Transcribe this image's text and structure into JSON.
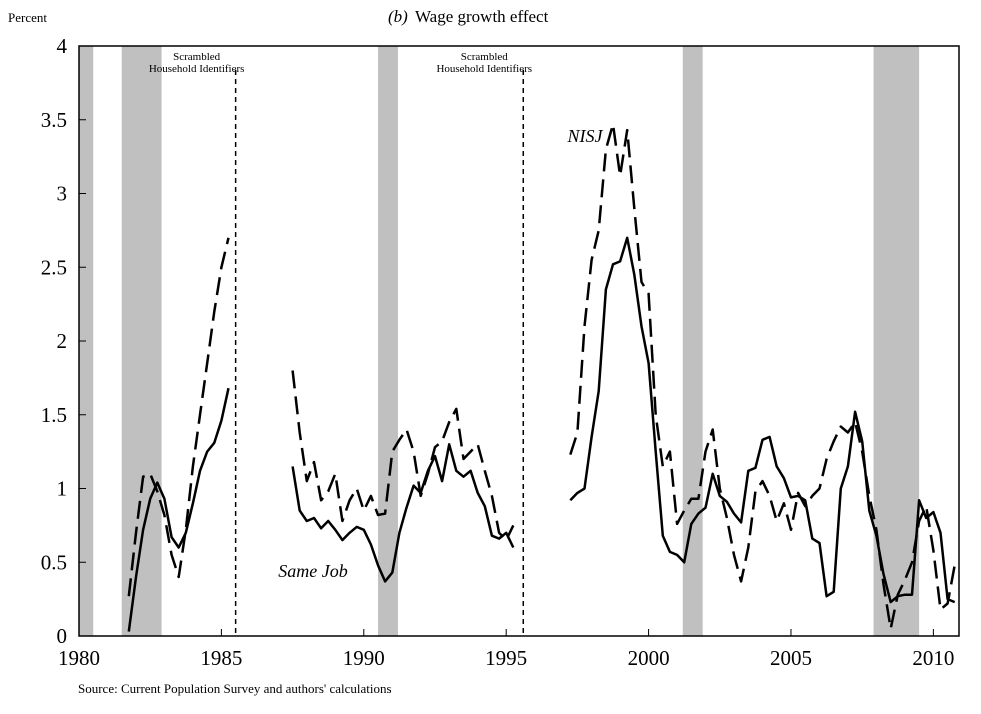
{
  "chart_data": {
    "type": "line",
    "panel_label": "(b)",
    "title": "Wage growth effect",
    "y_label": "Percent",
    "source": "Source: Current Population Survey and authors' calculations",
    "xlim": [
      1980,
      2010.9
    ],
    "xticks": [
      1980,
      1985,
      1990,
      1995,
      2000,
      2005,
      2010
    ],
    "ylim": [
      0,
      4
    ],
    "yticks": [
      0,
      0.5,
      1,
      1.5,
      2,
      2.5,
      3,
      3.5,
      4
    ],
    "shaded_periods": [
      [
        1980,
        1980.5
      ],
      [
        1981.5,
        1982.9
      ],
      [
        1990.5,
        1991.2
      ],
      [
        2001.2,
        2001.9
      ],
      [
        2007.9,
        2009.5
      ]
    ],
    "shade_color": "#c0c0c0",
    "vlines": [
      1985.5,
      1995.6
    ],
    "annotations": [
      [
        "Scrambled",
        "Household Identifiers"
      ],
      [
        "Scrambled",
        "Household Identifiers"
      ]
    ],
    "series": [
      {
        "name": "NISJ",
        "color": "#000000",
        "dash": true,
        "x": [
          1981.75,
          1982,
          1982.25,
          1982.5,
          1982.75,
          1983,
          1983.25,
          1983.5,
          1983.75,
          1984,
          1984.25,
          1984.5,
          1984.75,
          1985,
          1985.25,
          1986.5,
          1987.5,
          1987.75,
          1988,
          1988.25,
          1988.5,
          1988.75,
          1989,
          1989.25,
          1989.5,
          1989.75,
          1990,
          1990.25,
          1990.5,
          1990.75,
          1991,
          1991.25,
          1991.5,
          1991.75,
          1992,
          1992.25,
          1992.5,
          1992.75,
          1993,
          1993.25,
          1993.5,
          1993.75,
          1994,
          1994.25,
          1994.5,
          1994.75,
          1995,
          1995.25,
          1996.5,
          1997.25,
          1997.5,
          1997.75,
          1998,
          1998.25,
          1998.5,
          1998.75,
          1999,
          1999.25,
          1999.5,
          1999.75,
          2000,
          2000.25,
          2000.5,
          2000.75,
          2001,
          2001.25,
          2001.5,
          2001.75,
          2002,
          2002.25,
          2002.5,
          2002.75,
          2003,
          2003.25,
          2003.5,
          2003.75,
          2004,
          2004.25,
          2004.5,
          2004.75,
          2005,
          2005.25,
          2005.5,
          2005.75,
          2006,
          2006.25,
          2006.5,
          2006.75,
          2007,
          2007.25,
          2007.5,
          2007.75,
          2008,
          2008.25,
          2008.5,
          2008.75,
          2009,
          2009.25,
          2009.5,
          2009.75,
          2010,
          2010.25,
          2010.5,
          2010.75
        ],
        "values": [
          0.27,
          0.7,
          1.08,
          1.1,
          0.98,
          0.82,
          0.55,
          0.4,
          0.72,
          1.15,
          1.5,
          1.85,
          2.2,
          2.5,
          2.7,
          null,
          1.8,
          1.38,
          1.05,
          1.18,
          0.92,
          0.98,
          1.1,
          0.78,
          0.92,
          1.0,
          0.85,
          0.95,
          0.82,
          0.83,
          1.25,
          1.33,
          1.4,
          1.25,
          0.95,
          1.1,
          1.28,
          1.32,
          1.45,
          1.54,
          1.2,
          1.25,
          1.3,
          1.12,
          0.95,
          0.7,
          0.65,
          0.75,
          null,
          1.23,
          1.38,
          2.1,
          2.55,
          2.75,
          3.3,
          3.47,
          3.12,
          3.43,
          2.9,
          2.4,
          2.32,
          1.5,
          1.15,
          1.25,
          0.76,
          0.85,
          0.93,
          0.93,
          1.25,
          1.4,
          1.0,
          0.8,
          0.55,
          0.37,
          0.6,
          0.98,
          1.05,
          0.95,
          0.78,
          0.9,
          0.72,
          0.97,
          0.88,
          0.95,
          1.0,
          1.2,
          1.32,
          1.42,
          1.38,
          1.45,
          1.25,
          0.95,
          0.72,
          0.35,
          0.05,
          0.28,
          0.38,
          0.5,
          0.78,
          0.88,
          0.58,
          0.18,
          0.22,
          0.48
        ]
      },
      {
        "name": "Same Job",
        "color": "#000000",
        "dash": false,
        "x": [
          1981.75,
          1982,
          1982.25,
          1982.5,
          1982.75,
          1983,
          1983.25,
          1983.5,
          1983.75,
          1984,
          1984.25,
          1984.5,
          1984.75,
          1985,
          1985.25,
          1986.5,
          1987.5,
          1987.75,
          1988,
          1988.25,
          1988.5,
          1988.75,
          1989,
          1989.25,
          1989.5,
          1989.75,
          1990,
          1990.25,
          1990.5,
          1990.75,
          1991,
          1991.25,
          1991.5,
          1991.75,
          1992,
          1992.25,
          1992.5,
          1992.75,
          1993,
          1993.25,
          1993.5,
          1993.75,
          1994,
          1994.25,
          1994.5,
          1994.75,
          1995,
          1995.25,
          1996.5,
          1997.25,
          1997.5,
          1997.75,
          1998,
          1998.25,
          1998.5,
          1998.75,
          1999,
          1999.25,
          1999.5,
          1999.75,
          2000,
          2000.25,
          2000.5,
          2000.75,
          2001,
          2001.25,
          2001.5,
          2001.75,
          2002,
          2002.25,
          2002.5,
          2002.75,
          2003,
          2003.25,
          2003.5,
          2003.75,
          2004,
          2004.25,
          2004.5,
          2004.75,
          2005,
          2005.25,
          2005.5,
          2005.75,
          2006,
          2006.25,
          2006.5,
          2006.75,
          2007,
          2007.25,
          2007.5,
          2007.75,
          2008,
          2008.25,
          2008.5,
          2008.75,
          2009,
          2009.25,
          2009.5,
          2009.75,
          2010,
          2010.25,
          2010.5,
          2010.75
        ],
        "values": [
          0.03,
          0.4,
          0.72,
          0.93,
          1.04,
          0.93,
          0.67,
          0.6,
          0.7,
          0.9,
          1.12,
          1.25,
          1.31,
          1.46,
          1.68,
          null,
          1.15,
          0.85,
          0.78,
          0.8,
          0.73,
          0.78,
          0.72,
          0.65,
          0.7,
          0.74,
          0.72,
          0.62,
          0.48,
          0.37,
          0.43,
          0.7,
          0.87,
          1.02,
          0.97,
          1.12,
          1.22,
          1.05,
          1.3,
          1.12,
          1.08,
          1.12,
          0.97,
          0.88,
          0.68,
          0.66,
          0.7,
          0.6,
          null,
          0.92,
          0.97,
          1.0,
          1.35,
          1.66,
          2.35,
          2.52,
          2.54,
          2.7,
          2.45,
          2.1,
          1.85,
          1.25,
          0.68,
          0.57,
          0.55,
          0.5,
          0.76,
          0.83,
          0.87,
          1.1,
          0.95,
          0.91,
          0.83,
          0.77,
          1.12,
          1.14,
          1.33,
          1.35,
          1.15,
          1.07,
          0.94,
          0.95,
          0.92,
          0.66,
          0.63,
          0.27,
          0.3,
          1.0,
          1.15,
          1.52,
          1.32,
          0.85,
          0.68,
          0.42,
          0.23,
          0.27,
          0.28,
          0.28,
          0.92,
          0.8,
          0.84,
          0.7,
          0.25,
          0.23
        ]
      }
    ]
  }
}
